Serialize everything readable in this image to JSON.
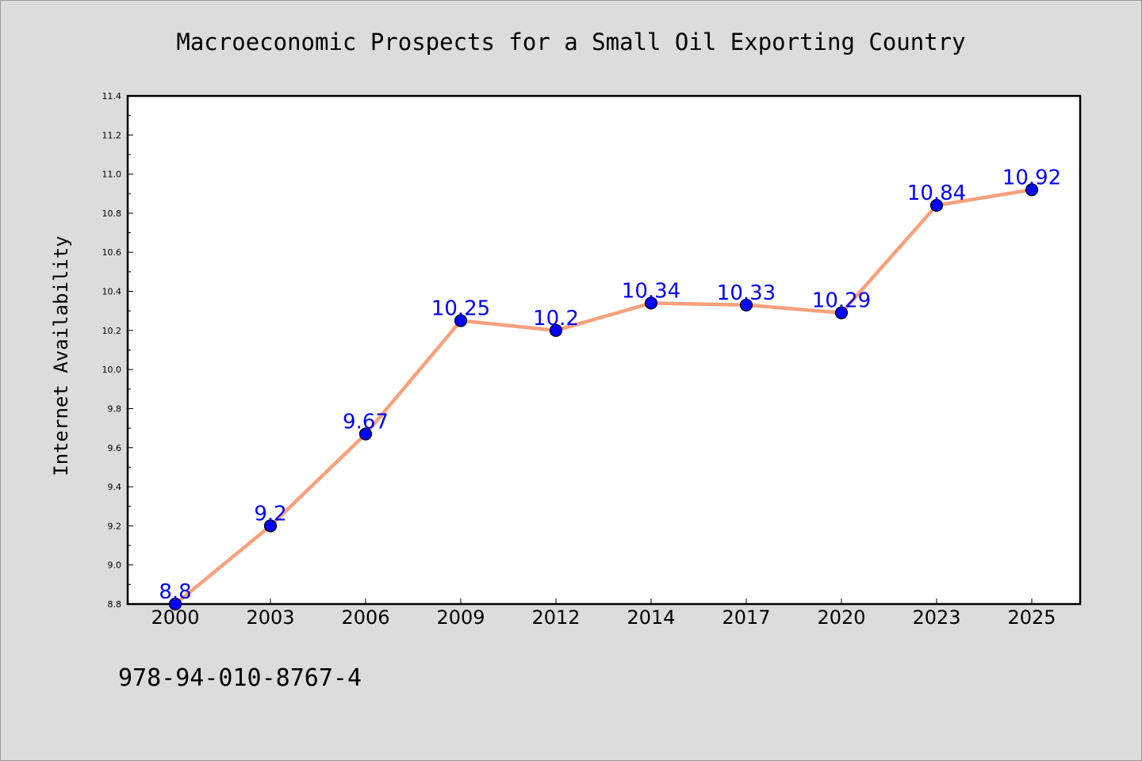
{
  "chart_data": {
    "type": "line",
    "title": "Macroeconomic Prospects for a Small Oil Exporting Country",
    "xlabel": "",
    "ylabel": "Internet Availability",
    "categories": [
      "2000",
      "2003",
      "2006",
      "2009",
      "2012",
      "2014",
      "2017",
      "2020",
      "2023",
      "2025"
    ],
    "series": [
      {
        "values": [
          8.8,
          9.2,
          9.67,
          10.25,
          10.2,
          10.34,
          10.33,
          10.29,
          10.84,
          10.92
        ],
        "data_labels": [
          "8.8",
          "9.2",
          "9.67",
          "10.25",
          "10.2",
          "10.34",
          "10.33",
          "10.29",
          "10.84",
          "10.92"
        ],
        "line_color": "#f9a07c",
        "marker_color": "#0000ff"
      }
    ],
    "ylim": [
      8.8,
      11.4
    ],
    "yticks": [
      "8.8",
      "9.0",
      "9.2",
      "9.4",
      "9.6",
      "9.8",
      "10.0",
      "10.2",
      "10.4",
      "10.6",
      "10.8",
      "11.0",
      "11.2",
      "11.4"
    ],
    "grid": false,
    "legend": "none"
  },
  "footnote": "978-94-010-8767-4",
  "colors": {
    "background": "#dcdcdc",
    "plot_background": "#ffffff",
    "label_color": "#0000ff"
  }
}
